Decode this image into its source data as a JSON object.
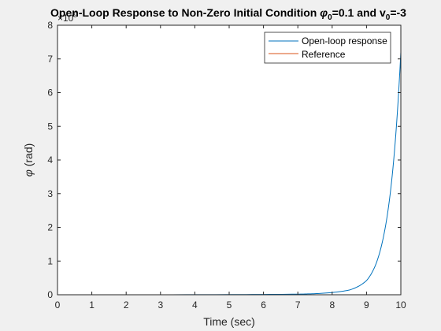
{
  "chart_data": {
    "type": "line",
    "title_main": "Open-Loop Response to Non-Zero Initial Condition ",
    "title_phi": "φ",
    "title_phi_sub": "0",
    "title_phi_val": "=0.1 and v",
    "title_v_sub": "0",
    "title_v_val": "=-3",
    "xlabel": "Time (sec)",
    "ylabel_sym": "φ",
    "ylabel_unit": " (rad)",
    "exponent_base": "×10",
    "exponent_power": "9",
    "xlim": [
      0,
      10
    ],
    "ylim": [
      0,
      8
    ],
    "xticks": [
      "0",
      "1",
      "2",
      "3",
      "4",
      "5",
      "6",
      "7",
      "8",
      "9",
      "10"
    ],
    "yticks": [
      "0",
      "1",
      "2",
      "3",
      "4",
      "5",
      "6",
      "7",
      "8"
    ],
    "legend_position": "top-right",
    "series": [
      {
        "name": "Open-loop response",
        "color": "#0072bd",
        "x": [
          0,
          5,
          7,
          7.5,
          8,
          8.5,
          9,
          9.25,
          9.5,
          9.75,
          10
        ],
        "y": [
          0,
          0.005,
          0.018,
          0.032,
          0.066,
          0.14,
          0.42,
          0.85,
          1.75,
          3.55,
          7.2
        ]
      },
      {
        "name": "Reference",
        "color": "#d95319",
        "x": [
          0,
          10
        ],
        "y": [
          0,
          0
        ]
      }
    ]
  }
}
